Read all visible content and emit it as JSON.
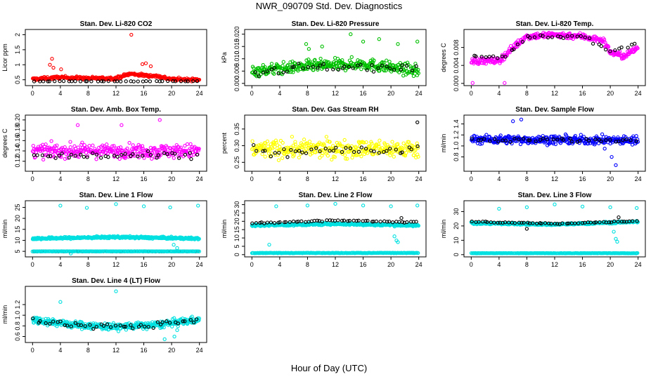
{
  "figure": {
    "title": "NWR_090709  Std. Dev. Diagnostics",
    "xlabel": "Hour of Day (UTC)"
  },
  "chart_data": [
    {
      "id": "co2",
      "type": "scatter",
      "title": "Stan. Dev. Li-820 CO2",
      "ylabel": "Licor ppm",
      "xlim": [
        0,
        24
      ],
      "xticks": [
        0,
        4,
        8,
        12,
        16,
        20,
        24
      ],
      "ylim": [
        0.38,
        2.1
      ],
      "yticks": [
        0.5,
        1.0,
        1.5,
        2.0
      ],
      "ytick_labels": [
        "0.5",
        "1",
        "1.5",
        "2"
      ],
      "series": [
        {
          "color": "#ff0000",
          "n": 330,
          "base": [
            [
              0,
              0.52
            ],
            [
              4,
              0.58
            ],
            [
              8,
              0.55
            ],
            [
              12,
              0.55
            ],
            [
              14,
              0.7
            ],
            [
              16,
              0.65
            ],
            [
              18,
              0.62
            ],
            [
              20,
              0.52
            ],
            [
              24,
              0.5
            ]
          ],
          "spread": 0.06,
          "jitter": 0.02,
          "points": [
            [
              2.5,
              1.0
            ],
            [
              2.8,
              1.2
            ],
            [
              3.0,
              0.9
            ],
            [
              4.1,
              0.85
            ],
            [
              14.2,
              2.0
            ],
            [
              15.8,
              1.02
            ],
            [
              16.3,
              1.05
            ],
            [
              17.0,
              0.95
            ]
          ]
        },
        {
          "color": "#000000",
          "n": 40,
          "base": [
            [
              0,
              0.45
            ],
            [
              24,
              0.45
            ]
          ],
          "spread": 0.01,
          "jitter": 0.005,
          "points": []
        }
      ]
    },
    {
      "id": "pressure",
      "type": "scatter",
      "title": "Stan. Dev. Li-820 Pressure",
      "ylabel": "kPa",
      "xlim": [
        0,
        24
      ],
      "xticks": [
        0,
        4,
        8,
        12,
        16,
        20,
        24
      ],
      "ylim": [
        0,
        0.021
      ],
      "yticks": [
        0,
        0.005,
        0.01,
        0.015,
        0.02
      ],
      "ytick_labels": [
        "0.000",
        "0.005",
        "0.010",
        "0.015",
        "0.020"
      ],
      "series": [
        {
          "color": "#00c000",
          "n": 350,
          "base": [
            [
              0,
              0.005
            ],
            [
              8,
              0.007
            ],
            [
              16,
              0.008
            ],
            [
              24,
              0.005
            ]
          ],
          "spread": 0.003,
          "jitter": 0.001,
          "points": [
            [
              7.8,
              0.016
            ],
            [
              8.2,
              0.014
            ],
            [
              10.1,
              0.015
            ],
            [
              14.2,
              0.02
            ],
            [
              16.0,
              0.017
            ],
            [
              18.3,
              0.018
            ],
            [
              21.0,
              0.016
            ],
            [
              23.8,
              0.017
            ]
          ]
        },
        {
          "color": "#000000",
          "n": 40,
          "base": [
            [
              0,
              0.004
            ],
            [
              10,
              0.007
            ],
            [
              24,
              0.006
            ]
          ],
          "spread": 0.002,
          "jitter": 0.001,
          "points": []
        }
      ]
    },
    {
      "id": "temp",
      "type": "scatter",
      "title": "Stan. Dev. Li-820 Temp.",
      "ylabel": "degrees C",
      "xlim": [
        0,
        24
      ],
      "xticks": [
        0,
        4,
        8,
        12,
        16,
        20,
        24
      ],
      "ylim": [
        0,
        0.0115
      ],
      "yticks": [
        0,
        0.004,
        0.008
      ],
      "ytick_labels": [
        "0.000",
        "0.004",
        "0.008"
      ],
      "series": [
        {
          "color": "#ff00ff",
          "n": 330,
          "base": [
            [
              0,
              0.005
            ],
            [
              4,
              0.005
            ],
            [
              6,
              0.008
            ],
            [
              8,
              0.0105
            ],
            [
              12,
              0.0108
            ],
            [
              16,
              0.0105
            ],
            [
              19,
              0.0095
            ],
            [
              20,
              0.007
            ],
            [
              22,
              0.006
            ],
            [
              24,
              0.008
            ]
          ],
          "spread": 0.0009,
          "jitter": 0.0003,
          "points": [
            [
              0.2,
              0.0001
            ],
            [
              4.8,
              0.0001
            ]
          ]
        },
        {
          "color": "#000000",
          "n": 40,
          "base": [
            [
              0,
              0.006
            ],
            [
              5,
              0.006
            ],
            [
              8,
              0.0105
            ],
            [
              16,
              0.0105
            ],
            [
              20,
              0.007
            ],
            [
              24,
              0.009
            ]
          ],
          "spread": 0.0005,
          "jitter": 0.0002,
          "points": []
        }
      ]
    },
    {
      "id": "ambbox",
      "type": "scatter",
      "title": "Stan. Dev. Amb. Box Temp.",
      "ylabel": "degrees C",
      "xlim": [
        0,
        24
      ],
      "xticks": [
        0,
        4,
        8,
        12,
        16,
        20,
        24
      ],
      "ylim": [
        0.105,
        0.205
      ],
      "yticks": [
        0.12,
        0.14,
        0.16,
        0.18,
        0.2
      ],
      "ytick_labels": [
        "0.12",
        "0.14",
        "0.16",
        "0.18",
        "0.20"
      ],
      "series": [
        {
          "color": "#ff00ff",
          "n": 330,
          "base": [
            [
              0,
              0.14
            ],
            [
              24,
              0.14
            ]
          ],
          "spread": 0.018,
          "jitter": 0.004,
          "points": [
            [
              6.5,
              0.19
            ],
            [
              12.8,
              0.19
            ],
            [
              18.3,
              0.2
            ]
          ]
        },
        {
          "color": "#000000",
          "n": 40,
          "base": [
            [
              0,
              0.13
            ],
            [
              24,
              0.13
            ]
          ],
          "spread": 0.01,
          "jitter": 0.003,
          "points": []
        }
      ]
    },
    {
      "id": "rh",
      "type": "scatter",
      "title": "Stan. Dev. Gas Stream RH",
      "ylabel": "percent",
      "xlim": [
        0,
        24
      ],
      "xticks": [
        0,
        4,
        8,
        12,
        16,
        20,
        24
      ],
      "ylim": [
        0.23,
        0.385
      ],
      "yticks": [
        0.25,
        0.3,
        0.35
      ],
      "ytick_labels": [
        "0.25",
        "0.30",
        "0.35"
      ],
      "series": [
        {
          "color": "#ffff00",
          "n": 330,
          "base": [
            [
              0,
              0.29
            ],
            [
              24,
              0.29
            ]
          ],
          "spread": 0.035,
          "jitter": 0.01,
          "points": []
        },
        {
          "color": "#000000",
          "n": 40,
          "base": [
            [
              0,
              0.285
            ],
            [
              24,
              0.285
            ]
          ],
          "spread": 0.02,
          "jitter": 0.006,
          "points": [
            [
              23.8,
              0.37
            ]
          ]
        }
      ]
    },
    {
      "id": "sampleflow",
      "type": "scatter",
      "title": "Stan. Dev. Sample Flow",
      "ylabel": "ml/min",
      "xlim": [
        0,
        24
      ],
      "xticks": [
        0,
        4,
        8,
        12,
        16,
        20,
        24
      ],
      "ylim": [
        0.58,
        1.52
      ],
      "yticks": [
        0.8,
        1.0,
        1.2,
        1.4
      ],
      "ytick_labels": [
        "0.8",
        "1.0",
        "1.2",
        "1.4"
      ],
      "series": [
        {
          "color": "#0000ff",
          "n": 360,
          "base": [
            [
              0,
              1.12
            ],
            [
              24,
              1.1
            ]
          ],
          "spread": 0.1,
          "jitter": 0.03,
          "points": [
            [
              6.0,
              1.45
            ],
            [
              7.2,
              1.48
            ],
            [
              19.2,
              0.95
            ],
            [
              20.2,
              0.8
            ],
            [
              20.8,
              0.65
            ]
          ]
        },
        {
          "color": "#000000",
          "n": 40,
          "base": [
            [
              0,
              1.12
            ],
            [
              24,
              1.1
            ]
          ],
          "spread": 0.05,
          "jitter": 0.02,
          "points": []
        }
      ]
    },
    {
      "id": "line1",
      "type": "scatter",
      "title": "Stan. Dev. Line 1 Flow",
      "ylabel": "ml/min",
      "xlim": [
        0,
        24
      ],
      "xticks": [
        0,
        4,
        8,
        12,
        16,
        20,
        24
      ],
      "ylim": [
        3.5,
        27
      ],
      "yticks": [
        5,
        10,
        15,
        20,
        25
      ],
      "ytick_labels": [
        "5",
        "10",
        "15",
        "20",
        "25"
      ],
      "series": [
        {
          "color": "#00e0e0",
          "n": 420,
          "base": [
            [
              0,
              10.8
            ],
            [
              12,
              11.5
            ],
            [
              24,
              10.8
            ]
          ],
          "spread": 0.6,
          "jitter": 0.2,
          "points": [
            [
              4.0,
              25.8
            ],
            [
              7.8,
              24.8
            ],
            [
              12.0,
              26.5
            ],
            [
              16.0,
              25.5
            ],
            [
              19.8,
              25.0
            ],
            [
              23.8,
              25.8
            ],
            [
              20.3,
              8.0
            ],
            [
              20.8,
              6.5
            ],
            [
              5.5,
              4.0
            ]
          ]
        },
        {
          "color": "#000000",
          "n": 55,
          "base": [
            [
              0,
              5.0
            ],
            [
              24,
              5.0
            ]
          ],
          "spread": 0.0,
          "jitter": 0.05,
          "points": []
        },
        {
          "color": "#00e0e0",
          "n": 200,
          "base": [
            [
              0,
              5.0
            ],
            [
              24,
              5.0
            ]
          ],
          "spread": 0.0,
          "jitter": 0.05,
          "points": []
        }
      ]
    },
    {
      "id": "line2",
      "type": "scatter",
      "title": "Stan. Dev. Line 2 Flow",
      "ylabel": "ml/min",
      "xlim": [
        0,
        24
      ],
      "xticks": [
        0,
        4,
        8,
        12,
        16,
        20,
        24
      ],
      "ylim": [
        0,
        31
      ],
      "yticks": [
        0,
        5,
        10,
        15,
        20,
        25,
        30
      ],
      "ytick_labels": [
        "0",
        "5",
        "10",
        "15",
        "20",
        "25",
        "30"
      ],
      "series": [
        {
          "color": "#00e0e0",
          "n": 400,
          "base": [
            [
              0,
              17.5
            ],
            [
              12,
              18.5
            ],
            [
              24,
              17.5
            ]
          ],
          "spread": 0.8,
          "jitter": 0.3,
          "points": [
            [
              3.5,
              29.0
            ],
            [
              8.0,
              29.5
            ],
            [
              12.0,
              30.5
            ],
            [
              16.0,
              29.5
            ],
            [
              20.0,
              29.0
            ],
            [
              23.8,
              29.5
            ],
            [
              20.5,
              11.0
            ],
            [
              20.8,
              8.5
            ],
            [
              21.0,
              7.5
            ],
            [
              2.5,
              6.0
            ]
          ]
        },
        {
          "color": "#000000",
          "n": 55,
          "base": [
            [
              0,
              19.0
            ],
            [
              12,
              20.5
            ],
            [
              24,
              19.5
            ]
          ],
          "spread": 0.4,
          "jitter": 0.3,
          "points": [
            [
              21.5,
              22.0
            ]
          ]
        },
        {
          "color": "#00e0e0",
          "n": 240,
          "base": [
            [
              0,
              1.0
            ],
            [
              24,
              1.0
            ]
          ],
          "spread": 0.0,
          "jitter": 0.15,
          "points": []
        }
      ]
    },
    {
      "id": "line3",
      "type": "scatter",
      "title": "Stan. Dev. Line 3 Flow",
      "ylabel": "ml/min",
      "xlim": [
        0,
        24
      ],
      "xticks": [
        0,
        4,
        8,
        12,
        16,
        20,
        24
      ],
      "ylim": [
        0,
        36
      ],
      "yticks": [
        0,
        10,
        20,
        30
      ],
      "ytick_labels": [
        "0",
        "10",
        "20",
        "30"
      ],
      "series": [
        {
          "color": "#00e0e0",
          "n": 400,
          "base": [
            [
              0,
              22.0
            ],
            [
              12,
              21.0
            ],
            [
              24,
              23.0
            ]
          ],
          "spread": 0.8,
          "jitter": 0.3,
          "points": [
            [
              4.0,
              32.0
            ],
            [
              8.0,
              33.0
            ],
            [
              12.0,
              35.0
            ],
            [
              16.0,
              33.5
            ],
            [
              20.0,
              33.0
            ],
            [
              23.8,
              32.5
            ],
            [
              20.5,
              16.0
            ],
            [
              20.8,
              11.0
            ],
            [
              21.0,
              9.0
            ]
          ]
        },
        {
          "color": "#000000",
          "n": 55,
          "base": [
            [
              0,
              23.0
            ],
            [
              12,
              21.5
            ],
            [
              24,
              23.5
            ]
          ],
          "spread": 0.4,
          "jitter": 0.3,
          "points": [
            [
              8.0,
              18.0
            ],
            [
              21.2,
              26.0
            ]
          ]
        },
        {
          "color": "#00e0e0",
          "n": 240,
          "base": [
            [
              0,
              1.0
            ],
            [
              24,
              1.0
            ]
          ],
          "spread": 0.0,
          "jitter": 0.15,
          "points": []
        }
      ]
    },
    {
      "id": "line4",
      "type": "scatter",
      "title": "Stan. Dev. Line 4 (LT) Flow",
      "ylabel": "ml/min",
      "xlim": [
        0,
        24
      ],
      "xticks": [
        0,
        4,
        8,
        12,
        16,
        20,
        24
      ],
      "ylim": [
        0.53,
        1.5
      ],
      "yticks": [
        0.6,
        0.8,
        1.0,
        1.2
      ],
      "ytick_labels": [
        "0.6",
        "0.8",
        "1.0",
        "1.2"
      ],
      "series": [
        {
          "color": "#00e0e0",
          "n": 420,
          "base": [
            [
              0,
              0.92
            ],
            [
              6,
              0.82
            ],
            [
              12,
              0.78
            ],
            [
              18,
              0.82
            ],
            [
              24,
              0.92
            ]
          ],
          "spread": 0.08,
          "jitter": 0.03,
          "points": [
            [
              12.0,
              1.45
            ],
            [
              4.0,
              1.25
            ],
            [
              19.0,
              0.55
            ],
            [
              20.4,
              0.6
            ],
            [
              20.8,
              0.72
            ]
          ]
        },
        {
          "color": "#000000",
          "n": 45,
          "base": [
            [
              0,
              0.9
            ],
            [
              6,
              0.82
            ],
            [
              12,
              0.78
            ],
            [
              18,
              0.82
            ],
            [
              24,
              0.9
            ]
          ],
          "spread": 0.06,
          "jitter": 0.03,
          "points": []
        }
      ]
    }
  ]
}
